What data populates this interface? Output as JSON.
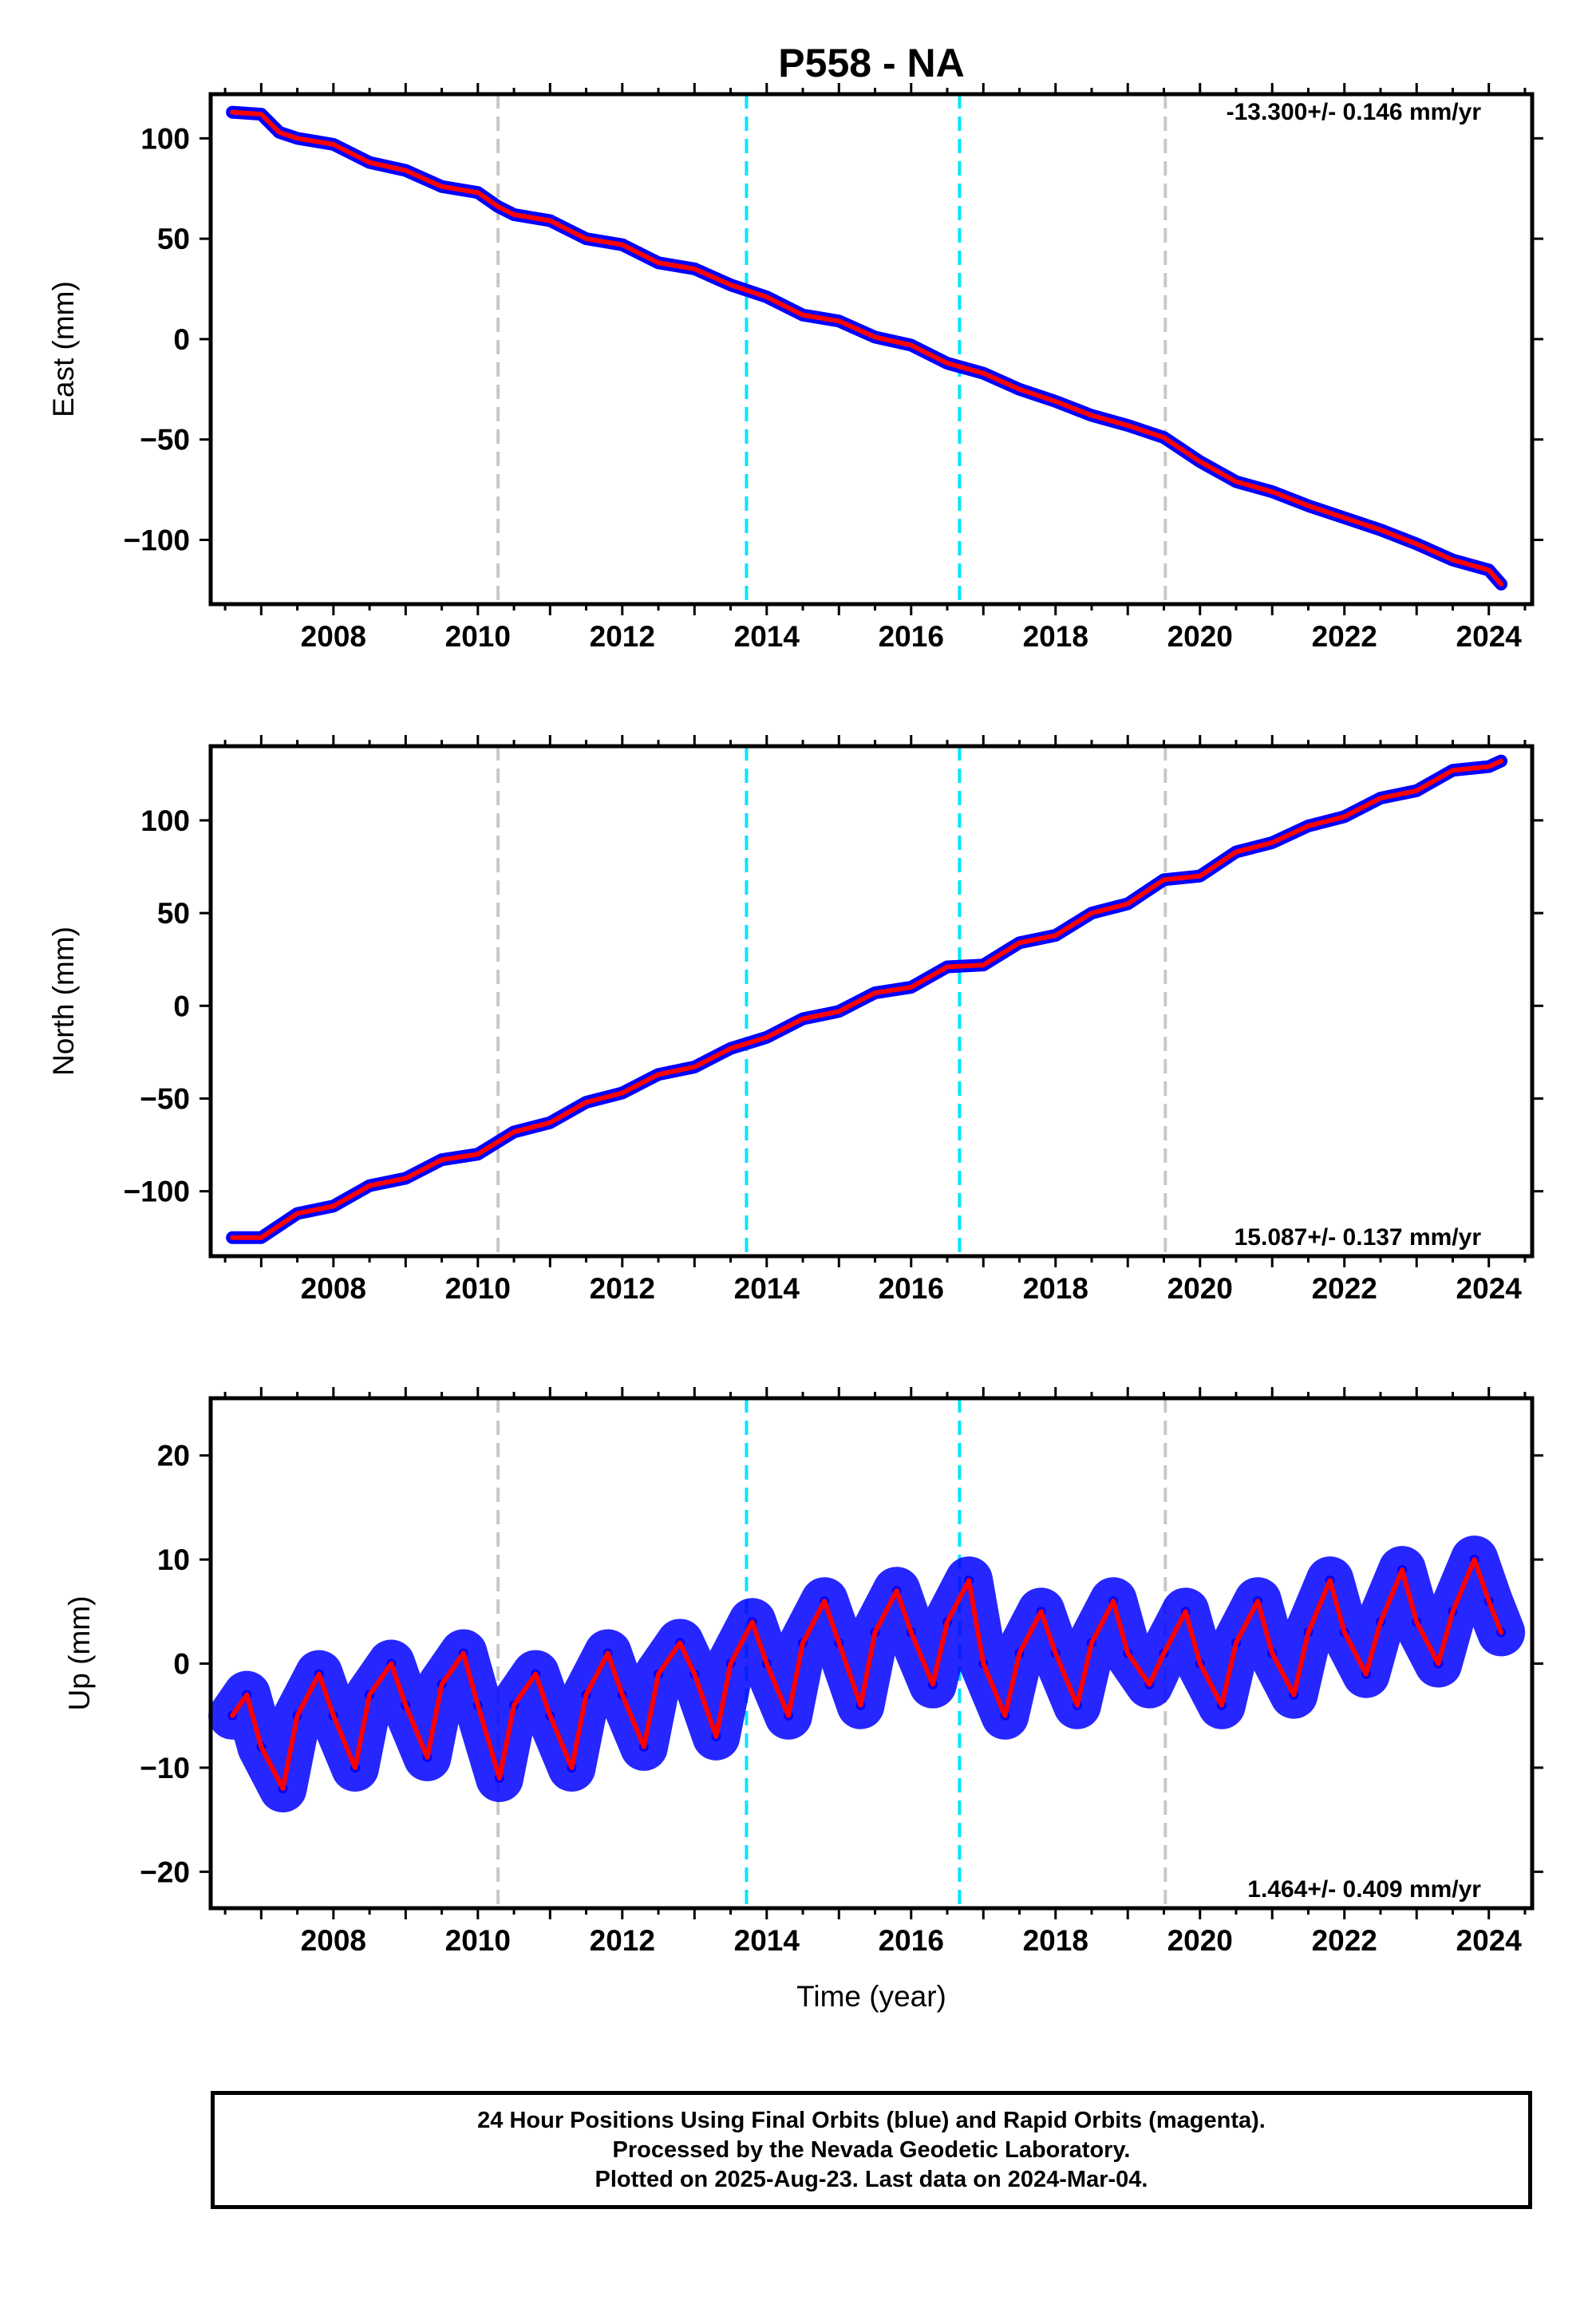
{
  "title": "P558 - NA",
  "xlabel": "Time (year)",
  "footer": [
    "24 Hour Positions Using Final Orbits (blue) and Rapid Orbits (magenta).",
    "Processed by the Nevada Geodetic Laboratory.",
    "Plotted on 2025-Aug-23. Last data on 2024-Mar-04."
  ],
  "colors": {
    "data_points": "#0000ff",
    "model_fit": "#ff0000",
    "equipment_change": "#c8c8c8",
    "earthquake": "#00e5ff"
  },
  "chart_data": [
    {
      "type": "scatter",
      "component": "East",
      "ylabel": "East (mm)",
      "rate_text": "-13.300+/- 0.146 mm/yr",
      "xlim": [
        2006.3,
        2024.6
      ],
      "ylim": [
        -132,
        122
      ],
      "yticks": [
        -100,
        -50,
        0,
        50,
        100
      ],
      "xticks": [
        2008,
        2010,
        2012,
        2014,
        2016,
        2018,
        2020,
        2022,
        2024
      ],
      "gray_dashed_lines": [
        2010.28,
        2019.52
      ],
      "cyan_dashed_lines": [
        2013.72,
        2016.67
      ],
      "series": [
        {
          "role": "daily positions",
          "x": [
            2006.6,
            2007.0,
            2007.25,
            2007.5,
            2008.0,
            2008.5,
            2009.0,
            2009.5,
            2010.0,
            2010.28,
            2010.5,
            2011.0,
            2011.5,
            2012.0,
            2012.5,
            2013.0,
            2013.5,
            2014.0,
            2014.5,
            2015.0,
            2015.5,
            2016.0,
            2016.5,
            2017.0,
            2017.5,
            2018.0,
            2018.5,
            2019.0,
            2019.5,
            2020.0,
            2020.5,
            2021.0,
            2021.5,
            2022.0,
            2022.5,
            2023.0,
            2023.5,
            2024.0,
            2024.17
          ],
          "y": [
            113,
            112,
            103,
            100,
            97,
            88,
            84,
            76,
            73,
            66,
            62,
            59,
            50,
            47,
            38,
            35,
            27,
            21,
            12,
            9,
            1,
            -3,
            -12,
            -17,
            -25,
            -31,
            -38,
            -43,
            -49,
            -61,
            -71,
            -76,
            -83,
            -89,
            -95,
            -102,
            -110,
            -115,
            -122
          ]
        },
        {
          "role": "model fit",
          "x": [
            2006.6,
            2007.0,
            2007.25,
            2007.5,
            2008.0,
            2008.5,
            2009.0,
            2009.5,
            2010.0,
            2010.28,
            2010.5,
            2011.0,
            2011.5,
            2012.0,
            2012.5,
            2013.0,
            2013.5,
            2014.0,
            2014.5,
            2015.0,
            2015.5,
            2016.0,
            2016.5,
            2017.0,
            2017.5,
            2018.0,
            2018.5,
            2019.0,
            2019.5,
            2020.0,
            2020.5,
            2021.0,
            2021.5,
            2022.0,
            2022.5,
            2023.0,
            2023.5,
            2024.0,
            2024.17
          ],
          "y": [
            113,
            112,
            103,
            100,
            97,
            88,
            84,
            76,
            73,
            66,
            62,
            59,
            50,
            47,
            38,
            35,
            27,
            21,
            12,
            9,
            1,
            -3,
            -12,
            -17,
            -25,
            -31,
            -38,
            -43,
            -49,
            -61,
            -71,
            -76,
            -83,
            -89,
            -95,
            -102,
            -110,
            -115,
            -122
          ]
        }
      ]
    },
    {
      "type": "scatter",
      "component": "North",
      "ylabel": "North (mm)",
      "rate_text": "15.087+/- 0.137 mm/yr",
      "xlim": [
        2006.3,
        2024.6
      ],
      "ylim": [
        -135,
        140
      ],
      "yticks": [
        -100,
        -50,
        0,
        50,
        100
      ],
      "xticks": [
        2008,
        2010,
        2012,
        2014,
        2016,
        2018,
        2020,
        2022,
        2024
      ],
      "gray_dashed_lines": [
        2010.28,
        2019.52
      ],
      "cyan_dashed_lines": [
        2013.72,
        2016.67
      ],
      "series": [
        {
          "role": "daily positions",
          "x": [
            2006.6,
            2007.0,
            2007.5,
            2008.0,
            2008.5,
            2009.0,
            2009.5,
            2010.0,
            2010.5,
            2011.0,
            2011.5,
            2012.0,
            2012.5,
            2013.0,
            2013.5,
            2014.0,
            2014.5,
            2015.0,
            2015.5,
            2016.0,
            2016.5,
            2017.0,
            2017.5,
            2018.0,
            2018.5,
            2019.0,
            2019.5,
            2020.0,
            2020.5,
            2021.0,
            2021.5,
            2022.0,
            2022.5,
            2023.0,
            2023.5,
            2024.0,
            2024.17
          ],
          "y": [
            -125,
            -125,
            -112,
            -108,
            -97,
            -93,
            -83,
            -80,
            -68,
            -63,
            -52,
            -47,
            -37,
            -33,
            -23,
            -17,
            -7,
            -3,
            7,
            10,
            21,
            22,
            34,
            38,
            50,
            55,
            68,
            70,
            83,
            88,
            97,
            102,
            112,
            116,
            127,
            129,
            132
          ]
        },
        {
          "role": "model fit",
          "x": [
            2006.6,
            2007.0,
            2007.5,
            2008.0,
            2008.5,
            2009.0,
            2009.5,
            2010.0,
            2010.5,
            2011.0,
            2011.5,
            2012.0,
            2012.5,
            2013.0,
            2013.5,
            2014.0,
            2014.5,
            2015.0,
            2015.5,
            2016.0,
            2016.5,
            2017.0,
            2017.5,
            2018.0,
            2018.5,
            2019.0,
            2019.5,
            2020.0,
            2020.5,
            2021.0,
            2021.5,
            2022.0,
            2022.5,
            2023.0,
            2023.5,
            2024.0,
            2024.17
          ],
          "y": [
            -125,
            -125,
            -112,
            -108,
            -97,
            -93,
            -83,
            -80,
            -68,
            -63,
            -52,
            -47,
            -37,
            -33,
            -23,
            -17,
            -7,
            -3,
            7,
            10,
            21,
            22,
            34,
            38,
            50,
            55,
            68,
            70,
            83,
            88,
            97,
            102,
            112,
            116,
            127,
            129,
            132
          ]
        }
      ]
    },
    {
      "type": "scatter",
      "component": "Up",
      "ylabel": "Up (mm)",
      "rate_text": "1.464+/- 0.409 mm/yr",
      "xlim": [
        2006.3,
        2024.6
      ],
      "ylim": [
        -23.5,
        25.5
      ],
      "yticks": [
        -20,
        -10,
        0,
        10,
        20
      ],
      "xticks": [
        2008,
        2010,
        2012,
        2014,
        2016,
        2018,
        2020,
        2022,
        2024
      ],
      "gray_dashed_lines": [
        2010.28,
        2019.52
      ],
      "cyan_dashed_lines": [
        2013.72,
        2016.67
      ],
      "series": [
        {
          "role": "daily positions",
          "x": [
            2006.6,
            2006.8,
            2007.0,
            2007.3,
            2007.5,
            2007.8,
            2008.0,
            2008.3,
            2008.5,
            2008.8,
            2009.0,
            2009.3,
            2009.5,
            2009.8,
            2010.0,
            2010.3,
            2010.5,
            2010.8,
            2011.0,
            2011.3,
            2011.5,
            2011.8,
            2012.0,
            2012.3,
            2012.5,
            2012.8,
            2013.0,
            2013.3,
            2013.5,
            2013.8,
            2014.0,
            2014.3,
            2014.5,
            2014.8,
            2015.0,
            2015.3,
            2015.5,
            2015.8,
            2016.0,
            2016.3,
            2016.5,
            2016.8,
            2017.0,
            2017.3,
            2017.5,
            2017.8,
            2018.0,
            2018.3,
            2018.5,
            2018.8,
            2019.0,
            2019.3,
            2019.5,
            2019.8,
            2020.0,
            2020.3,
            2020.5,
            2020.8,
            2021.0,
            2021.3,
            2021.5,
            2021.8,
            2022.0,
            2022.3,
            2022.5,
            2022.8,
            2023.0,
            2023.3,
            2023.5,
            2023.8,
            2024.0,
            2024.17
          ],
          "y": [
            -5,
            -3,
            -8,
            -12,
            -5,
            -1,
            -5,
            -10,
            -3,
            0,
            -4,
            -9,
            -2,
            1,
            -4,
            -11,
            -4,
            -1,
            -5,
            -10,
            -3,
            1,
            -3,
            -8,
            -1,
            2,
            -1,
            -7,
            0,
            4,
            0,
            -5,
            2,
            6,
            2,
            -4,
            3,
            7,
            3,
            -2,
            4,
            8,
            0,
            -5,
            1,
            5,
            1,
            -4,
            2,
            6,
            1,
            -2,
            1,
            5,
            0,
            -4,
            2,
            6,
            1,
            -3,
            3,
            8,
            3,
            -1,
            4,
            9,
            4,
            0,
            5,
            10,
            6,
            3
          ]
        },
        {
          "role": "model fit",
          "x": [
            2006.6,
            2006.8,
            2007.0,
            2007.3,
            2007.5,
            2007.8,
            2008.0,
            2008.3,
            2008.5,
            2008.8,
            2009.0,
            2009.3,
            2009.5,
            2009.8,
            2010.0,
            2010.3,
            2010.5,
            2010.8,
            2011.0,
            2011.3,
            2011.5,
            2011.8,
            2012.0,
            2012.3,
            2012.5,
            2012.8,
            2013.0,
            2013.3,
            2013.5,
            2013.8,
            2014.0,
            2014.3,
            2014.5,
            2014.8,
            2015.0,
            2015.3,
            2015.5,
            2015.8,
            2016.0,
            2016.3,
            2016.5,
            2016.8,
            2017.0,
            2017.3,
            2017.5,
            2017.8,
            2018.0,
            2018.3,
            2018.5,
            2018.8,
            2019.0,
            2019.3,
            2019.5,
            2019.8,
            2020.0,
            2020.3,
            2020.5,
            2020.8,
            2021.0,
            2021.3,
            2021.5,
            2021.8,
            2022.0,
            2022.3,
            2022.5,
            2022.8,
            2023.0,
            2023.3,
            2023.5,
            2023.8,
            2024.0,
            2024.17
          ],
          "y": [
            -5,
            -3,
            -8,
            -12,
            -5,
            -1,
            -5,
            -10,
            -3,
            0,
            -4,
            -9,
            -2,
            1,
            -4,
            -11,
            -4,
            -1,
            -5,
            -10,
            -3,
            1,
            -3,
            -8,
            -1,
            2,
            -1,
            -7,
            0,
            4,
            0,
            -5,
            2,
            6,
            2,
            -4,
            3,
            7,
            3,
            -2,
            4,
            8,
            0,
            -5,
            1,
            5,
            1,
            -4,
            2,
            6,
            1,
            -2,
            1,
            5,
            0,
            -4,
            2,
            6,
            1,
            -3,
            3,
            8,
            3,
            -1,
            4,
            9,
            4,
            0,
            5,
            10,
            6,
            3
          ]
        }
      ]
    }
  ]
}
